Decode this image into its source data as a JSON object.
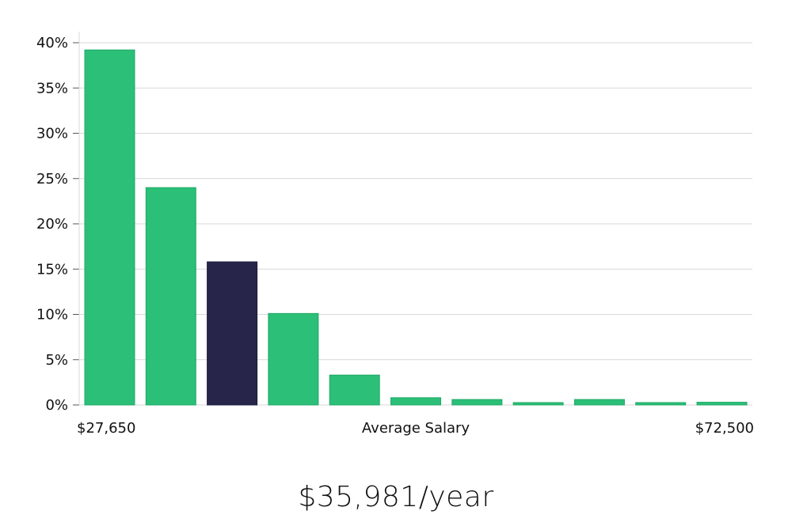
{
  "chart_data": {
    "type": "bar",
    "categories": [
      "1",
      "2",
      "3",
      "4",
      "5",
      "6",
      "7",
      "8",
      "9",
      "10",
      "11"
    ],
    "values": [
      39.2,
      24.0,
      15.8,
      10.1,
      3.3,
      0.8,
      0.6,
      0.2,
      0.6,
      0.2,
      0.3
    ],
    "highlight_index": 2,
    "ylim": [
      0,
      40
    ],
    "yticks": [
      "0%",
      "5%",
      "10%",
      "15%",
      "20%",
      "25%",
      "30%",
      "35%",
      "40%"
    ],
    "ytick_values": [
      0,
      5,
      10,
      15,
      20,
      25,
      30,
      35,
      40
    ],
    "x_min_label": "$27,650",
    "x_center_label": "Average Salary",
    "x_max_label": "$72,500",
    "grid": true,
    "colors": {
      "bar": "#2bbf78",
      "bar_stroke": "#22a866",
      "highlight": "#27264a",
      "grid": "#d9d9d9"
    }
  },
  "salary": "$35,981/year"
}
